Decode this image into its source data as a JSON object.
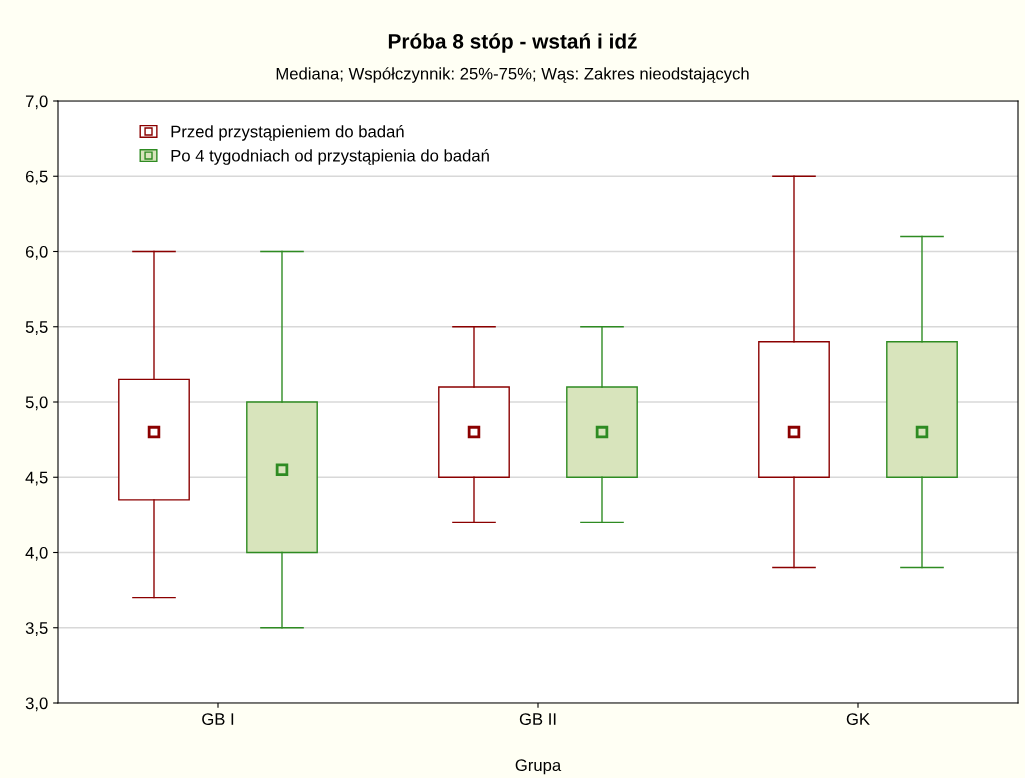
{
  "chart_data": {
    "type": "box",
    "title": "Próba 8 stóp - wstań i idź",
    "subtitle": "Mediana; Współczynnik: 25%-75%; Wąs: Zakres nieodstających",
    "xlabel": "Grupa",
    "categories": [
      "GB I",
      "GB II",
      "GK"
    ],
    "series": [
      {
        "name": "Przed przystąpieniem do badań",
        "color": "#8b0000",
        "boxes": [
          {
            "low": 3.7,
            "q1": 4.35,
            "median": 4.8,
            "q3": 5.15,
            "high": 6.0
          },
          {
            "low": 4.2,
            "q1": 4.5,
            "median": 4.8,
            "q3": 5.1,
            "high": 5.5
          },
          {
            "low": 3.9,
            "q1": 4.5,
            "median": 4.8,
            "q3": 5.4,
            "high": 6.5
          }
        ]
      },
      {
        "name": "Po 4 tygodniach od przystąpienia do badań",
        "color": "#2e8b22",
        "boxes": [
          {
            "low": 3.5,
            "q1": 4.0,
            "median": 4.55,
            "q3": 5.0,
            "high": 6.0
          },
          {
            "low": 4.2,
            "q1": 4.5,
            "median": 4.8,
            "q3": 5.1,
            "high": 5.5
          },
          {
            "low": 3.9,
            "q1": 4.5,
            "median": 4.8,
            "q3": 5.4,
            "high": 6.1
          }
        ]
      }
    ],
    "ylim": [
      3.0,
      7.0
    ],
    "yticks": [
      {
        "value": 3.0,
        "label": "3,0"
      },
      {
        "value": 3.5,
        "label": "3,5"
      },
      {
        "value": 4.0,
        "label": "4,0"
      },
      {
        "value": 4.5,
        "label": "4,5"
      },
      {
        "value": 5.0,
        "label": "5,0"
      },
      {
        "value": 5.5,
        "label": "5,5"
      },
      {
        "value": 6.0,
        "label": "6,0"
      },
      {
        "value": 6.5,
        "label": "6,5"
      },
      {
        "value": 7.0,
        "label": "7,0"
      }
    ],
    "grid": "y",
    "legend": "top left",
    "marker": "square"
  }
}
